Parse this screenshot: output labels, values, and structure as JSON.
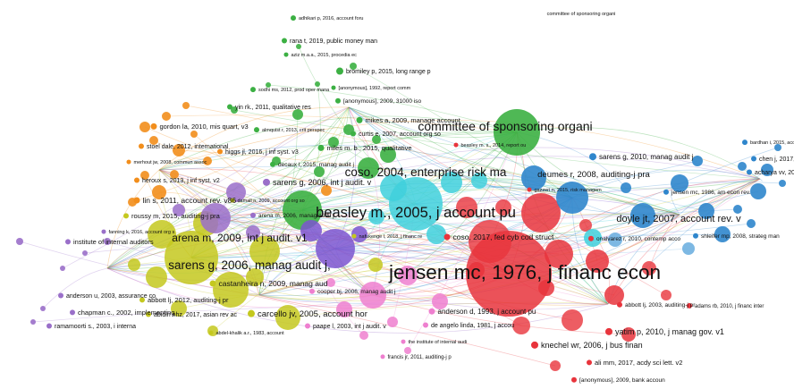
{
  "map": {
    "cluster_colors": {
      "red": "#e8343c",
      "green": "#3cb043",
      "blue": "#2f86cc",
      "yellow": "#c4c81e",
      "purple": "#9a6fc9",
      "cyan": "#3fd0dc",
      "orange": "#f28e1c",
      "pink": "#ee7fcf",
      "light_blue": "#6fb0e0",
      "violet": "#7b55d0"
    },
    "labels": [
      {
        "id": "adhikari",
        "text": "adhikari p, 2016, account foru"
      },
      {
        "id": "committee_top",
        "text": "committee of sponsoring organi"
      },
      {
        "id": "rana",
        "text": "rana t, 2019, public money man"
      },
      {
        "id": "aziz",
        "text": "aziz m.a.a., 2015, procedia ec"
      },
      {
        "id": "bromiley",
        "text": "bromiley p, 2015, long range p"
      },
      {
        "id": "sodhi",
        "text": "sodhi ms, 2012, prod oper mana"
      },
      {
        "id": "anon_1992",
        "text": "[anonymous], 1992, report comm"
      },
      {
        "id": "anon_2009",
        "text": "[anonymous], 2009, 31000 iso"
      },
      {
        "id": "yin",
        "text": "yin rk., 2011, qualitative res"
      },
      {
        "id": "mikes",
        "text": "mikes a, 2009, manage account"
      },
      {
        "id": "almquist",
        "text": "almquist r, 2013, crit perspec"
      },
      {
        "id": "curtis",
        "text": "curtis e, 2007, account org so"
      },
      {
        "id": "gordon",
        "text": "gordon la, 2010, mis quart, v3"
      },
      {
        "id": "committee_big",
        "text": "committee of sponsoring organi"
      },
      {
        "id": "bardhan",
        "text": "bardhan i, 2015, account horiz"
      },
      {
        "id": "beasley_ms",
        "text": "beasley m. s., 2014, report ou"
      },
      {
        "id": "stoel",
        "text": "stoel dale, 2012, international"
      },
      {
        "id": "miles",
        "text": "miles m. b., 2015, qualitative"
      },
      {
        "id": "sarens_2010",
        "text": "sarens g, 2010, manag audit j"
      },
      {
        "id": "chen",
        "text": "chen j, 2017, ecr. account rev."
      },
      {
        "id": "hoggs",
        "text": "higgs jl, 2016, j inf syst. v3"
      },
      {
        "id": "decaux",
        "text": "decaux l, 2015, manag audit j"
      },
      {
        "id": "coso_2004",
        "text": "coso, 2004, enterprise risk ma"
      },
      {
        "id": "deumes",
        "text": "deumes r, 2008, auditing-j pra"
      },
      {
        "id": "merhout",
        "text": "merhout jw, 2008, commun assoc"
      },
      {
        "id": "acharya",
        "text": "acharya vv, 2011, j financ. v6"
      },
      {
        "id": "heroux",
        "text": "heroux s, 2013, j inf syst. v2"
      },
      {
        "id": "sarens_2006a",
        "text": "sarens g, 2006, int j audit. v"
      },
      {
        "id": "gazzeri",
        "text": "gazzeri n, 2015, risk managem"
      },
      {
        "id": "jensen_1986",
        "text": "jensen mc, 1986, am econ rev."
      },
      {
        "id": "lin",
        "text": "lin s, 2011, account rev. v86"
      },
      {
        "id": "beasley_2005",
        "text": "beasley m., 2005, j account pu"
      },
      {
        "id": "doyle",
        "text": "doyle jt, 2007, account rev. v"
      },
      {
        "id": "roussy",
        "text": "roussy m, 2015, auditing-j pra"
      },
      {
        "id": "damall",
        "text": "damall n, 2009, account org so"
      },
      {
        "id": "arena_2006",
        "text": "arena m, 2006, manag audit j"
      },
      {
        "id": "fanning",
        "text": "fanning k, 2016, account org s"
      },
      {
        "id": "nafukenge",
        "text": "nafukenge l, 2018, j financ re"
      },
      {
        "id": "coso_2017",
        "text": "coso, 2017, fed cyb cod struct"
      },
      {
        "id": "onalvarez",
        "text": "onalvarez r, 2010, contemp acco"
      },
      {
        "id": "shleifer",
        "text": "shleifer mp, 2008, strateg man"
      },
      {
        "id": "iia",
        "text": "institute of internal auditors"
      },
      {
        "id": "arena_2009",
        "text": "arena m, 2009, int j audit. v1"
      },
      {
        "id": "sarens_2006b",
        "text": "sarens g, 2006, manag audit j,"
      },
      {
        "id": "jensen_1976",
        "text": "jensen mc, 1976, j financ econ"
      },
      {
        "id": "castanheira",
        "text": "castanheira n, 2009, manag aud"
      },
      {
        "id": "abbott_2003",
        "text": "abbott lj, 2003, auditing-j pr"
      },
      {
        "id": "anderson_u",
        "text": "anderson u, 2003, assurance co"
      },
      {
        "id": "abbott_2012",
        "text": "abbott lj, 2012, auditing-j pr"
      },
      {
        "id": "cooper",
        "text": "cooper bj, 2006, manag audit j"
      },
      {
        "id": "adams",
        "text": "adams rb, 2010, j financ inter"
      },
      {
        "id": "chapman",
        "text": "chapman c., 2002, implementing"
      },
      {
        "id": "carcello",
        "text": "carcello jv, 2005, account hor"
      },
      {
        "id": "anderson_d",
        "text": "anderson d, 1993, j account pu"
      },
      {
        "id": "ramamoorti",
        "text": "ramamoorti s., 2003, i interna"
      },
      {
        "id": "abidin",
        "text": "abidin nhz, 2017, asian rev ac"
      },
      {
        "id": "paape",
        "text": "paape l, 2003, int j audit. v"
      },
      {
        "id": "deangelo",
        "text": "de angelo linda, 1981, j accou"
      },
      {
        "id": "yatim",
        "text": "yatim p, 2010, j manag gov. v1"
      },
      {
        "id": "abdel",
        "text": "abdel-khalik a.r., 1983, account"
      },
      {
        "id": "iia_2",
        "text": "the institute of internal audi"
      },
      {
        "id": "knechel",
        "text": "knechel wr, 2006, j bus finan"
      },
      {
        "id": "ali",
        "text": "ali mm, 2017, acdy sci lett. v2"
      },
      {
        "id": "francis",
        "text": "francis jr, 2011, auditing-j p"
      },
      {
        "id": "anon_bank",
        "text": "[anonymous], 2009, bank accoun"
      }
    ]
  }
}
